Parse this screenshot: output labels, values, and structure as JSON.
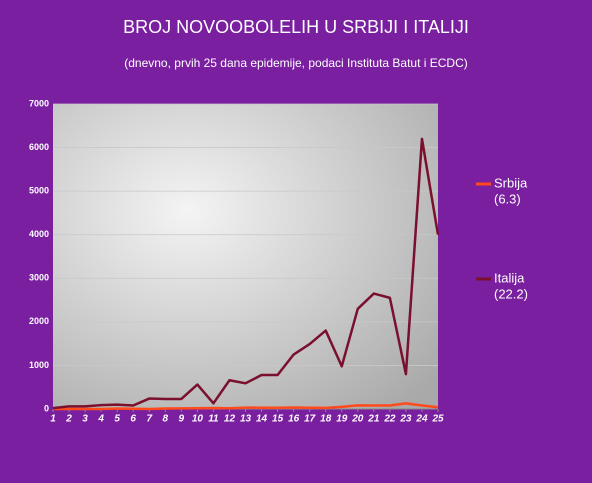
{
  "chart_data": {
    "type": "line",
    "title": "BROJ NOVOOBOLELIH U SRBIJI I ITALIJI",
    "subtitle": "(dnevno, prvih 25 dana epidemije, podaci Instituta Batut i ECDC)",
    "x": [
      1,
      2,
      3,
      4,
      5,
      6,
      7,
      8,
      9,
      10,
      11,
      12,
      13,
      14,
      15,
      16,
      17,
      18,
      19,
      20,
      21,
      22,
      23,
      24,
      25
    ],
    "xlim": [
      1,
      25
    ],
    "xticks": [
      1,
      2,
      3,
      4,
      5,
      6,
      7,
      8,
      9,
      10,
      11,
      12,
      13,
      14,
      15,
      16,
      17,
      18,
      19,
      20,
      21,
      22,
      23,
      24,
      25
    ],
    "ylim": [
      0,
      7000
    ],
    "yticks": [
      0,
      1000,
      2000,
      3000,
      4000,
      5000,
      6000,
      7000
    ],
    "grid": true,
    "legend": "right",
    "series": [
      {
        "name": "Srbija",
        "note": "(6.3)",
        "color": "#ff4a1c",
        "values": [
          1,
          0,
          0,
          1,
          12,
          5,
          0,
          11,
          15,
          17,
          24,
          17,
          31,
          30,
          30,
          35,
          30,
          25,
          50,
          83,
          79,
          81,
          130,
          80,
          40
        ]
      },
      {
        "name": "Italija",
        "note": "(22.2)",
        "color": "#7a0f2e",
        "values": [
          20,
          60,
          60,
          90,
          100,
          80,
          240,
          230,
          230,
          560,
          130,
          660,
          590,
          780,
          780,
          1250,
          1490,
          1800,
          980,
          2300,
          2650,
          2550,
          800,
          6200,
          4000
        ]
      }
    ]
  }
}
